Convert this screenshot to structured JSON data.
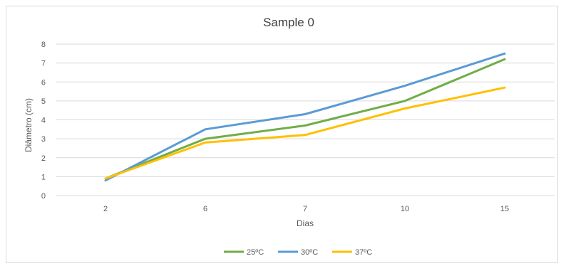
{
  "chart_data": {
    "type": "line",
    "title": "Sample 0",
    "xlabel": "Dias",
    "ylabel": "Diâmetro (cm)",
    "categories": [
      "2",
      "6",
      "7",
      "10",
      "15"
    ],
    "ylim": [
      0,
      8
    ],
    "yticks": [
      "0",
      "1",
      "2",
      "3",
      "4",
      "5",
      "6",
      "7",
      "8"
    ],
    "grid": true,
    "legend_position": "bottom",
    "series": [
      {
        "name": "25ºC",
        "color": "#70ad47",
        "values": [
          0.9,
          3.0,
          3.7,
          5.0,
          7.2
        ]
      },
      {
        "name": "30ºC",
        "color": "#5b9bd5",
        "values": [
          0.8,
          3.5,
          4.3,
          5.8,
          7.5
        ]
      },
      {
        "name": "37ºC",
        "color": "#ffc000",
        "values": [
          0.9,
          2.8,
          3.2,
          4.6,
          5.7
        ]
      }
    ]
  }
}
